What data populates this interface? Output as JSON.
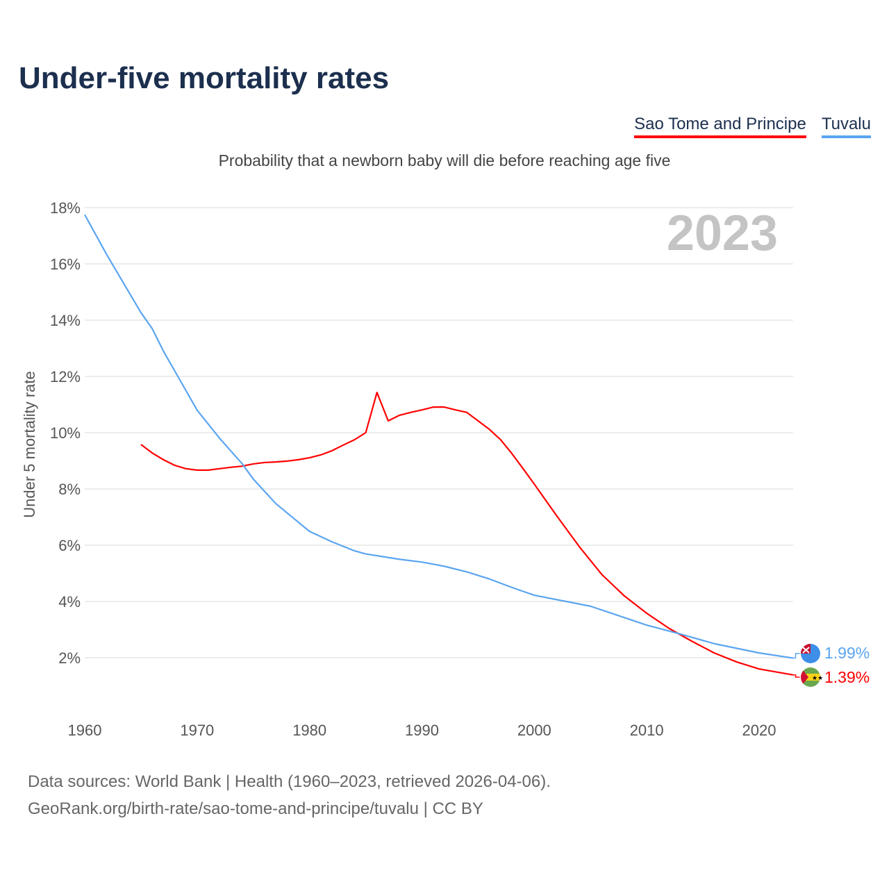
{
  "title": "Under-five mortality rates",
  "legend": [
    {
      "name": "Sao Tome and Principe",
      "color": "#ff0000"
    },
    {
      "name": "Tuvalu",
      "color": "#5aa5f0"
    }
  ],
  "source": {
    "line1": "Data sources: World Bank | Health (1960–2023, retrieved 2026-04-06).",
    "line2": "GeoRank.org/birth-rate/sao-tome-and-principe/tuvalu | CC BY"
  },
  "chart_data": {
    "type": "line",
    "title": "Under-five mortality rates",
    "subtitle": "Probability that a newborn baby will die before reaching age five",
    "year_label": "2023",
    "xlabel": "",
    "ylabel": "Under 5 mortality rate",
    "xlim": [
      1960,
      2023
    ],
    "ylim": [
      0,
      18
    ],
    "xticks": [
      1960,
      1970,
      1980,
      1990,
      2000,
      2010,
      2020
    ],
    "yticks": [
      2,
      4,
      6,
      8,
      10,
      12,
      14,
      16,
      18
    ],
    "ytick_labels": [
      "2%",
      "4%",
      "6%",
      "8%",
      "10%",
      "12%",
      "14%",
      "16%",
      "18%"
    ],
    "grid": true,
    "legend_position": "top-right",
    "series": [
      {
        "name": "Sao Tome and Principe",
        "color": "#ff0000",
        "end_label": "1.39%",
        "x": [
          1965,
          1966,
          1967,
          1968,
          1969,
          1970,
          1971,
          1972,
          1973,
          1974,
          1975,
          1976,
          1977,
          1978,
          1979,
          1980,
          1981,
          1982,
          1983,
          1984,
          1985,
          1986,
          1987,
          1988,
          1989,
          1990,
          1991,
          1992,
          1993,
          1994,
          1995,
          1996,
          1997,
          1998,
          1999,
          2000,
          2002,
          2004,
          2006,
          2008,
          2010,
          2012,
          2014,
          2016,
          2018,
          2020,
          2023
        ],
        "y": [
          9.58,
          9.28,
          9.04,
          8.84,
          8.72,
          8.67,
          8.67,
          8.72,
          8.77,
          8.81,
          8.89,
          8.94,
          8.96,
          8.99,
          9.04,
          9.11,
          9.21,
          9.36,
          9.56,
          9.75,
          10.0,
          11.43,
          10.42,
          10.62,
          10.72,
          10.81,
          10.91,
          10.91,
          10.81,
          10.72,
          10.42,
          10.12,
          9.75,
          9.26,
          8.72,
          8.17,
          7.04,
          5.95,
          4.96,
          4.2,
          3.58,
          3.04,
          2.59,
          2.17,
          1.85,
          1.6,
          1.39
        ]
      },
      {
        "name": "Tuvalu",
        "color": "#5aa5f0",
        "end_label": "1.99%",
        "x": [
          1960,
          1962,
          1965,
          1966,
          1967,
          1970,
          1972,
          1974,
          1975,
          1977,
          1980,
          1982,
          1984,
          1985,
          1988,
          1990,
          1992,
          1994,
          1996,
          1998,
          2000,
          2005,
          2010,
          2013,
          2016,
          2020,
          2023
        ],
        "y": [
          17.75,
          16.3,
          14.27,
          13.7,
          12.9,
          10.8,
          9.8,
          8.9,
          8.35,
          7.48,
          6.49,
          6.12,
          5.8,
          5.69,
          5.5,
          5.4,
          5.25,
          5.05,
          4.8,
          4.5,
          4.22,
          3.83,
          3.16,
          2.84,
          2.5,
          2.17,
          1.99
        ]
      }
    ]
  }
}
